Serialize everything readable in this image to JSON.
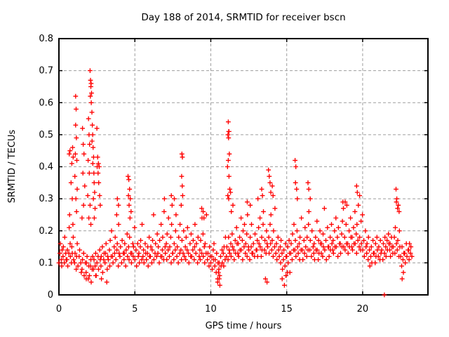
{
  "window": {
    "background": "#ffffff"
  },
  "chart_data": {
    "type": "scatter",
    "title": "Day 188 of 2014, SRMTID for receiver bscn",
    "xlabel": "GPS time / hours",
    "ylabel": "SRMTID / TECUs",
    "series_name": "SRMTID",
    "marker": "plus",
    "marker_color": "#ff0000",
    "grid": "dashed-gray-both-axes",
    "legend": "none",
    "xlim": [
      0,
      24.3
    ],
    "ylim": [
      0,
      0.8
    ],
    "xticks": {
      "values": [
        0,
        5,
        10,
        15,
        20
      ],
      "labels": [
        "0",
        "5",
        "10",
        "15",
        "20"
      ]
    },
    "yticks": {
      "values": [
        0,
        0.1,
        0.2,
        0.3,
        0.4,
        0.5,
        0.6,
        0.7,
        0.8
      ],
      "labels": [
        "0",
        "0.1",
        "0.2",
        "0.3",
        "0.4",
        "0.5",
        "0.6",
        "0.7",
        "0.8"
      ]
    },
    "bin_width": 0.25,
    "base_bins": [
      [
        0.1,
        0.13,
        0.16,
        0.11,
        0.09,
        0.14
      ],
      [
        0.12,
        0.15,
        0.1,
        0.18,
        0.13,
        0.11
      ],
      [
        0.11,
        0.14,
        0.09,
        0.13,
        0.21,
        0.16
      ],
      [
        0.12,
        0.1,
        0.15,
        0.13,
        0.18,
        0.11
      ],
      [
        0.1,
        0.13,
        0.08,
        0.12,
        0.16
      ],
      [
        0.09,
        0.12,
        0.14,
        0.1,
        0.07
      ],
      [
        0.08,
        0.11,
        0.13,
        0.06,
        0.1
      ],
      [
        0.07,
        0.1,
        0.12,
        0.05,
        0.09
      ],
      [
        0.06,
        0.09,
        0.11,
        0.04,
        0.08,
        0.12
      ],
      [
        0.08,
        0.11,
        0.09,
        0.13,
        0.06
      ],
      [
        0.1,
        0.12,
        0.08,
        0.14,
        0.11
      ],
      [
        0.09,
        0.12,
        0.15,
        0.07,
        0.11,
        0.13
      ],
      [
        0.1,
        0.13,
        0.16,
        0.08,
        0.12
      ],
      [
        0.11,
        0.14,
        0.09,
        0.17,
        0.12,
        0.2
      ],
      [
        0.12,
        0.1,
        0.15,
        0.13,
        0.18
      ],
      [
        0.11,
        0.14,
        0.16,
        0.09,
        0.22,
        0.13
      ],
      [
        0.12,
        0.15,
        0.1,
        0.17,
        0.13
      ],
      [
        0.11,
        0.13,
        0.16,
        0.09,
        0.14,
        0.19
      ],
      [
        0.12,
        0.15,
        0.11,
        0.18,
        0.13
      ],
      [
        0.1,
        0.13,
        0.16,
        0.12,
        0.15,
        0.21
      ],
      [
        0.11,
        0.14,
        0.09,
        0.16,
        0.12
      ],
      [
        0.13,
        0.1,
        0.15,
        0.17,
        0.11,
        0.22
      ],
      [
        0.12,
        0.14,
        0.1,
        0.16,
        0.13
      ],
      [
        0.11,
        0.13,
        0.15,
        0.09,
        0.18,
        0.12
      ],
      [
        0.12,
        0.15,
        0.1,
        0.14,
        0.17,
        0.25
      ],
      [
        0.11,
        0.13,
        0.16,
        0.12,
        0.19
      ],
      [
        0.13,
        0.15,
        0.1,
        0.17,
        0.12,
        0.22
      ],
      [
        0.12,
        0.14,
        0.18,
        0.11,
        0.26,
        0.15
      ],
      [
        0.13,
        0.16,
        0.11,
        0.19,
        0.14,
        0.24
      ],
      [
        0.12,
        0.15,
        0.18,
        0.1,
        0.22,
        0.13
      ],
      [
        0.13,
        0.11,
        0.16,
        0.14,
        0.2,
        0.25
      ],
      [
        0.12,
        0.15,
        0.1,
        0.18,
        0.13,
        0.22
      ],
      [
        0.14,
        0.11,
        0.17,
        0.13,
        0.2
      ],
      [
        0.12,
        0.15,
        0.11,
        0.18,
        0.14,
        0.21
      ],
      [
        0.13,
        0.1,
        0.16,
        0.12,
        0.19
      ],
      [
        0.12,
        0.14,
        0.17,
        0.11,
        0.15,
        0.22
      ],
      [
        0.13,
        0.16,
        0.1,
        0.18,
        0.12
      ],
      [
        0.14,
        0.11,
        0.17,
        0.13,
        0.24,
        0.19
      ],
      [
        0.12,
        0.15,
        0.1,
        0.16,
        0.13,
        0.25
      ],
      [
        0.11,
        0.13,
        0.09,
        0.15,
        0.12
      ],
      [
        0.1,
        0.12,
        0.08,
        0.14,
        0.11,
        0.16
      ],
      [
        0.09,
        0.11,
        0.07,
        0.13,
        0.05,
        0.1
      ],
      [
        0.08,
        0.1,
        0.06,
        0.12,
        0.09,
        0.14
      ],
      [
        0.1,
        0.13,
        0.09,
        0.15,
        0.11,
        0.18
      ],
      [
        0.12,
        0.15,
        0.11,
        0.18,
        0.14
      ],
      [
        0.13,
        0.16,
        0.12,
        0.19,
        0.15,
        0.28
      ],
      [
        0.14,
        0.11,
        0.17,
        0.13,
        0.21,
        0.16
      ],
      [
        0.13,
        0.16,
        0.12,
        0.18,
        0.14,
        0.24
      ],
      [
        0.14,
        0.17,
        0.11,
        0.2,
        0.15,
        0.22
      ],
      [
        0.13,
        0.16,
        0.19,
        0.12,
        0.25,
        0.15
      ],
      [
        0.14,
        0.11,
        0.18,
        0.15,
        0.22,
        0.13
      ],
      [
        0.13,
        0.16,
        0.12,
        0.19,
        0.14
      ],
      [
        0.14,
        0.17,
        0.12,
        0.21,
        0.16,
        0.24
      ],
      [
        0.15,
        0.12,
        0.18,
        0.14,
        0.22,
        0.26
      ],
      [
        0.14,
        0.17,
        0.13,
        0.2,
        0.16
      ],
      [
        0.15,
        0.18,
        0.13,
        0.22,
        0.16,
        0.25
      ],
      [
        0.14,
        0.17,
        0.12,
        0.2,
        0.15,
        0.27
      ],
      [
        0.13,
        0.16,
        0.11,
        0.18,
        0.14
      ],
      [
        0.12,
        0.15,
        0.1,
        0.17,
        0.13,
        0.08
      ],
      [
        0.11,
        0.14,
        0.09,
        0.16,
        0.12
      ],
      [
        0.12,
        0.15,
        0.1,
        0.17,
        0.13,
        0.07
      ],
      [
        0.13,
        0.16,
        0.11,
        0.19,
        0.14,
        0.22
      ],
      [
        0.14,
        0.17,
        0.12,
        0.2,
        0.15
      ],
      [
        0.13,
        0.16,
        0.11,
        0.18,
        0.14,
        0.24
      ],
      [
        0.14,
        0.11,
        0.17,
        0.13,
        0.21
      ],
      [
        0.15,
        0.12,
        0.18,
        0.14,
        0.22,
        0.26
      ],
      [
        0.14,
        0.17,
        0.12,
        0.2,
        0.15
      ],
      [
        0.13,
        0.16,
        0.11,
        0.18,
        0.14,
        0.23
      ],
      [
        0.14,
        0.11,
        0.17,
        0.13,
        0.2,
        0.16
      ],
      [
        0.13,
        0.16,
        0.12,
        0.19,
        0.15,
        0.27
      ],
      [
        0.14,
        0.17,
        0.11,
        0.21,
        0.15
      ],
      [
        0.15,
        0.12,
        0.18,
        0.14,
        0.22,
        0.16
      ],
      [
        0.14,
        0.17,
        0.13,
        0.2,
        0.15,
        0.24
      ],
      [
        0.15,
        0.18,
        0.12,
        0.21,
        0.16
      ],
      [
        0.16,
        0.13,
        0.19,
        0.15,
        0.23,
        0.27
      ],
      [
        0.15,
        0.18,
        0.14,
        0.22,
        0.16,
        0.28
      ],
      [
        0.16,
        0.13,
        0.2,
        0.15,
        0.24,
        0.18
      ],
      [
        0.15,
        0.18,
        0.14,
        0.21,
        0.16,
        0.26
      ],
      [
        0.16,
        0.19,
        0.13,
        0.22,
        0.17,
        0.28
      ],
      [
        0.15,
        0.18,
        0.14,
        0.23,
        0.16,
        0.25
      ],
      [
        0.14,
        0.17,
        0.12,
        0.2,
        0.15
      ],
      [
        0.13,
        0.16,
        0.11,
        0.18,
        0.14,
        0.09
      ],
      [
        0.12,
        0.15,
        0.1,
        0.17,
        0.13
      ],
      [
        0.13,
        0.1,
        0.16,
        0.12,
        0.18,
        0.14
      ],
      [
        0.12,
        0.15,
        0.11,
        0.17,
        0.13
      ],
      [
        0.14,
        0.11,
        0.16,
        0.13,
        0.18
      ],
      [
        0.15,
        0.12,
        0.17,
        0.14,
        0.19,
        0.16
      ],
      [
        0.14,
        0.16,
        0.12,
        0.18,
        0.15,
        0.13
      ],
      [
        0.15,
        0.18,
        0.13,
        0.21,
        0.16
      ],
      [
        0.14,
        0.17,
        0.12,
        0.2,
        0.15
      ],
      [
        0.12,
        0.09,
        0.15,
        0.11,
        0.07,
        0.13
      ],
      [
        0.13,
        0.1,
        0.16,
        0.12,
        0.14
      ],
      [
        0.14,
        0.11,
        0.16,
        0.13,
        0.15,
        0.12
      ]
    ],
    "extra_points": [
      [
        0.68,
        0.44
      ],
      [
        0.73,
        0.45
      ],
      [
        0.85,
        0.41
      ],
      [
        0.9,
        0.46
      ],
      [
        0.94,
        0.43
      ],
      [
        0.8,
        0.35
      ],
      [
        0.88,
        0.3
      ],
      [
        0.7,
        0.25
      ],
      [
        0.92,
        0.22
      ],
      [
        1.1,
        0.62
      ],
      [
        1.13,
        0.58
      ],
      [
        1.1,
        0.53
      ],
      [
        1.15,
        0.49
      ],
      [
        1.08,
        0.44
      ],
      [
        1.18,
        0.42
      ],
      [
        1.05,
        0.37
      ],
      [
        1.2,
        0.33
      ],
      [
        1.12,
        0.3
      ],
      [
        1.16,
        0.26
      ],
      [
        1.55,
        0.52
      ],
      [
        1.6,
        0.47
      ],
      [
        1.65,
        0.44
      ],
      [
        1.58,
        0.38
      ],
      [
        1.7,
        0.34
      ],
      [
        1.62,
        0.28
      ],
      [
        1.52,
        0.24
      ],
      [
        1.8,
        0.05
      ],
      [
        1.95,
        0.55
      ],
      [
        1.98,
        0.5
      ],
      [
        2.02,
        0.47
      ],
      [
        1.92,
        0.42
      ],
      [
        2.0,
        0.38
      ],
      [
        1.9,
        0.31
      ],
      [
        2.05,
        0.28
      ],
      [
        1.97,
        0.24
      ],
      [
        2.1,
        0.22
      ],
      [
        2.05,
        0.7
      ],
      [
        2.08,
        0.67
      ],
      [
        2.12,
        0.66
      ],
      [
        2.1,
        0.65
      ],
      [
        2.15,
        0.63
      ],
      [
        2.07,
        0.62
      ],
      [
        2.13,
        0.6
      ],
      [
        2.17,
        0.57
      ],
      [
        2.2,
        0.53
      ],
      [
        2.22,
        0.5
      ],
      [
        2.18,
        0.48
      ],
      [
        2.25,
        0.46
      ],
      [
        2.28,
        0.43
      ],
      [
        2.23,
        0.41
      ],
      [
        2.3,
        0.38
      ],
      [
        2.32,
        0.35
      ],
      [
        2.35,
        0.32
      ],
      [
        2.27,
        0.3
      ],
      [
        2.38,
        0.27
      ],
      [
        2.33,
        0.24
      ],
      [
        2.42,
        0.06
      ],
      [
        2.5,
        0.52
      ],
      [
        2.55,
        0.43
      ],
      [
        2.6,
        0.41
      ],
      [
        2.52,
        0.4
      ],
      [
        2.65,
        0.4
      ],
      [
        2.58,
        0.38
      ],
      [
        2.62,
        0.35
      ],
      [
        2.68,
        0.31
      ],
      [
        2.72,
        0.28
      ],
      [
        2.8,
        0.05
      ],
      [
        3.15,
        0.04
      ],
      [
        3.85,
        0.3
      ],
      [
        3.92,
        0.28
      ],
      [
        3.8,
        0.25
      ],
      [
        4.55,
        0.37
      ],
      [
        4.6,
        0.36
      ],
      [
        4.65,
        0.33
      ],
      [
        4.58,
        0.31
      ],
      [
        4.7,
        0.3
      ],
      [
        4.62,
        0.28
      ],
      [
        4.75,
        0.26
      ],
      [
        4.68,
        0.24
      ],
      [
        6.95,
        0.3
      ],
      [
        7.4,
        0.31
      ],
      [
        7.45,
        0.28
      ],
      [
        7.6,
        0.3
      ],
      [
        8.1,
        0.44
      ],
      [
        8.13,
        0.43
      ],
      [
        8.08,
        0.37
      ],
      [
        8.12,
        0.34
      ],
      [
        8.15,
        0.31
      ],
      [
        8.05,
        0.28
      ],
      [
        9.4,
        0.27
      ],
      [
        9.5,
        0.26
      ],
      [
        9.55,
        0.24
      ],
      [
        10.45,
        0.04
      ],
      [
        10.6,
        0.03
      ],
      [
        10.55,
        0.05
      ],
      [
        10.5,
        0.07
      ],
      [
        11.15,
        0.54
      ],
      [
        11.18,
        0.51
      ],
      [
        11.2,
        0.51
      ],
      [
        11.13,
        0.5
      ],
      [
        11.17,
        0.49
      ],
      [
        11.22,
        0.44
      ],
      [
        11.15,
        0.42
      ],
      [
        11.1,
        0.4
      ],
      [
        11.2,
        0.37
      ],
      [
        11.25,
        0.33
      ],
      [
        11.12,
        0.31
      ],
      [
        11.18,
        0.3
      ],
      [
        11.3,
        0.32
      ],
      [
        11.35,
        0.26
      ],
      [
        12.4,
        0.29
      ],
      [
        12.6,
        0.28
      ],
      [
        13.1,
        0.3
      ],
      [
        13.35,
        0.33
      ],
      [
        13.4,
        0.31
      ],
      [
        13.6,
        0.05
      ],
      [
        13.7,
        0.04
      ],
      [
        13.8,
        0.39
      ],
      [
        13.85,
        0.37
      ],
      [
        13.9,
        0.35
      ],
      [
        13.95,
        0.32
      ],
      [
        14.05,
        0.34
      ],
      [
        14.1,
        0.31
      ],
      [
        14.7,
        0.05
      ],
      [
        14.85,
        0.03
      ],
      [
        14.95,
        0.06
      ],
      [
        15.05,
        0.07
      ],
      [
        15.55,
        0.42
      ],
      [
        15.6,
        0.4
      ],
      [
        15.58,
        0.35
      ],
      [
        15.65,
        0.33
      ],
      [
        15.7,
        0.3
      ],
      [
        16.4,
        0.35
      ],
      [
        16.45,
        0.33
      ],
      [
        16.55,
        0.3
      ],
      [
        18.7,
        0.29
      ],
      [
        18.85,
        0.29
      ],
      [
        19.6,
        0.34
      ],
      [
        19.65,
        0.32
      ],
      [
        19.8,
        0.31
      ],
      [
        21.43,
        0.0
      ],
      [
        22.2,
        0.33
      ],
      [
        22.25,
        0.3
      ],
      [
        22.22,
        0.29
      ],
      [
        22.3,
        0.27
      ],
      [
        22.35,
        0.28
      ],
      [
        22.4,
        0.26
      ],
      [
        22.6,
        0.05
      ]
    ]
  }
}
